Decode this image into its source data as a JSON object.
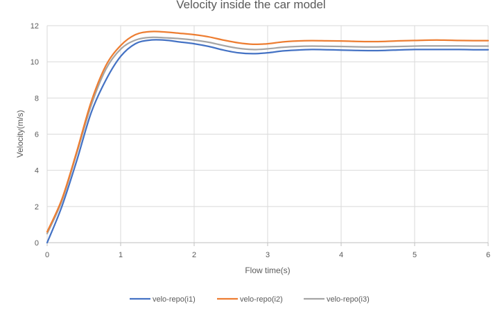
{
  "chart_data": {
    "type": "line",
    "title": "Velocity inside the car model",
    "xlabel": "Flow time(s)",
    "ylabel": "Velocity(m/s)",
    "xlim": [
      0,
      6
    ],
    "ylim": [
      0,
      12
    ],
    "xticks": [
      0,
      1,
      2,
      3,
      4,
      5,
      6
    ],
    "yticks": [
      0,
      2,
      4,
      6,
      8,
      10,
      12
    ],
    "grid": true,
    "legend_position": "bottom",
    "series": [
      {
        "name": "velo-repo(i1)",
        "color": "#4472C4",
        "x": [
          0,
          0.2,
          0.4,
          0.6,
          0.8,
          1.0,
          1.2,
          1.4,
          1.6,
          1.8,
          2.0,
          2.2,
          2.4,
          2.6,
          2.8,
          3.0,
          3.2,
          3.4,
          3.6,
          3.8,
          4.0,
          4.2,
          4.4,
          4.6,
          4.8,
          5.0,
          5.2,
          5.4,
          5.6,
          5.8,
          6.0
        ],
        "y": [
          0,
          2.0,
          4.5,
          7.2,
          9.0,
          10.3,
          11.0,
          11.2,
          11.2,
          11.1,
          11.0,
          10.85,
          10.65,
          10.5,
          10.45,
          10.5,
          10.6,
          10.65,
          10.68,
          10.67,
          10.65,
          10.63,
          10.62,
          10.63,
          10.66,
          10.68,
          10.68,
          10.68,
          10.68,
          10.67,
          10.67
        ]
      },
      {
        "name": "velo-repo(i2)",
        "color": "#ED7D31",
        "x": [
          0,
          0.2,
          0.4,
          0.6,
          0.8,
          1.0,
          1.2,
          1.4,
          1.6,
          1.8,
          2.0,
          2.2,
          2.4,
          2.6,
          2.8,
          3.0,
          3.2,
          3.4,
          3.6,
          3.8,
          4.0,
          4.2,
          4.4,
          4.6,
          4.8,
          5.0,
          5.2,
          5.4,
          5.6,
          5.8,
          6.0
        ],
        "y": [
          0.6,
          2.4,
          5.0,
          7.8,
          9.8,
          10.9,
          11.5,
          11.67,
          11.65,
          11.58,
          11.5,
          11.38,
          11.2,
          11.05,
          10.97,
          11.0,
          11.1,
          11.15,
          11.17,
          11.16,
          11.15,
          11.13,
          11.12,
          11.13,
          11.16,
          11.18,
          11.2,
          11.2,
          11.18,
          11.17,
          11.17
        ]
      },
      {
        "name": "velo-repo(i3)",
        "color": "#A5A5A5",
        "x": [
          0,
          0.2,
          0.4,
          0.6,
          0.8,
          1.0,
          1.2,
          1.4,
          1.6,
          1.8,
          2.0,
          2.2,
          2.4,
          2.6,
          2.8,
          3.0,
          3.2,
          3.4,
          3.6,
          3.8,
          4.0,
          4.2,
          4.4,
          4.6,
          4.8,
          5.0,
          5.2,
          5.4,
          5.6,
          5.8,
          6.0
        ],
        "y": [
          0.5,
          2.3,
          4.9,
          7.6,
          9.6,
          10.7,
          11.2,
          11.35,
          11.33,
          11.28,
          11.2,
          11.08,
          10.9,
          10.75,
          10.68,
          10.72,
          10.8,
          10.85,
          10.87,
          10.86,
          10.85,
          10.83,
          10.82,
          10.83,
          10.85,
          10.87,
          10.88,
          10.88,
          10.88,
          10.87,
          10.87
        ]
      }
    ]
  }
}
